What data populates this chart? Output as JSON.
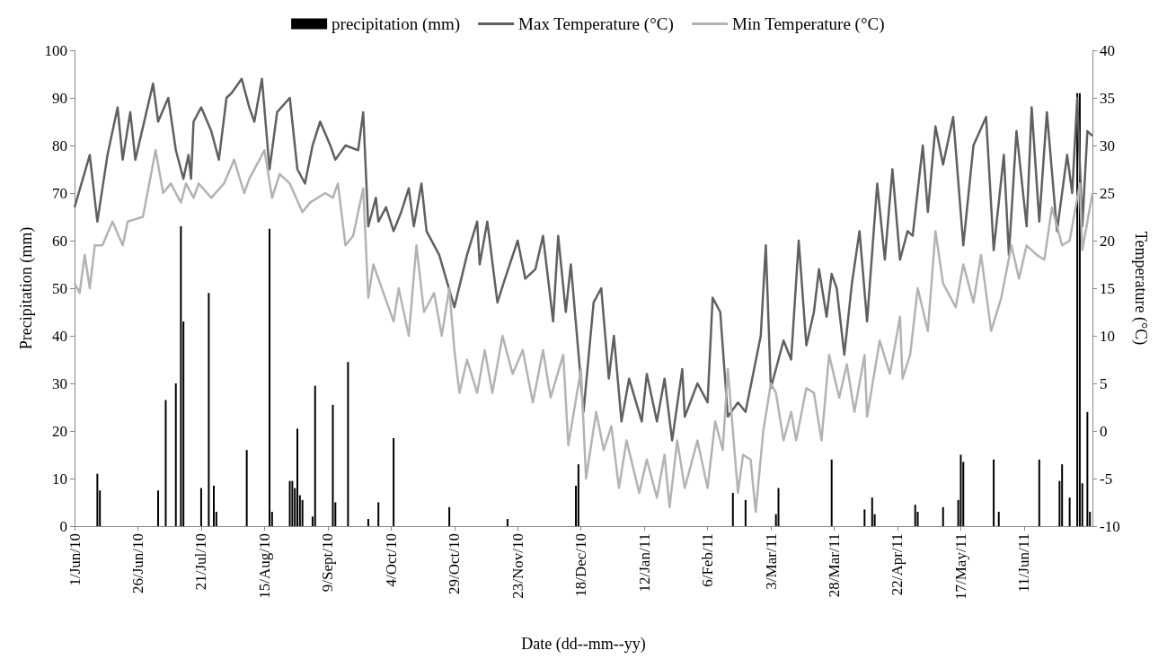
{
  "chart_data": {
    "type": "line",
    "xlabel": "Date (dd--mm--yy)",
    "ylabel": "Precipitation (mm)",
    "y2label": "Temperature (°C)",
    "xlim": [
      "2010-06-01",
      "2011-07-08"
    ],
    "xticks": [
      {
        "value": "2010-06-01",
        "label": "1/Jun/10"
      },
      {
        "value": "2010-06-26",
        "label": "26/Jun/10"
      },
      {
        "value": "2010-07-21",
        "label": "21/Jul/10"
      },
      {
        "value": "2010-08-15",
        "label": "15/Aug/10"
      },
      {
        "value": "2010-09-09",
        "label": "9/Sept/10"
      },
      {
        "value": "2010-10-04",
        "label": "4/Oct/10"
      },
      {
        "value": "2010-10-29",
        "label": "29/Oct/10"
      },
      {
        "value": "2010-11-23",
        "label": "23/Nov/10"
      },
      {
        "value": "2010-12-18",
        "label": "18/Dec/10"
      },
      {
        "value": "2011-01-12",
        "label": "12/Jan/11"
      },
      {
        "value": "2011-02-06",
        "label": "6/Feb/11"
      },
      {
        "value": "2011-03-03",
        "label": "3/Mar/11"
      },
      {
        "value": "2011-03-28",
        "label": "28/Mar/11"
      },
      {
        "value": "2011-04-22",
        "label": "22/Apr/11"
      },
      {
        "value": "2011-05-17",
        "label": "17/May/11"
      },
      {
        "value": "2011-06-11",
        "label": "11/Jun/11"
      }
    ],
    "ylim": [
      0,
      100
    ],
    "yticks": [
      0,
      10,
      20,
      30,
      40,
      50,
      60,
      70,
      80,
      90,
      100
    ],
    "y2lim": [
      -10,
      40
    ],
    "y2ticks": [
      -10,
      -5,
      0,
      5,
      10,
      15,
      20,
      25,
      30,
      35,
      40
    ],
    "grid": false,
    "legend": "top",
    "series": [
      {
        "name": "precipitation (mm)",
        "type": "bar",
        "color": "#000000",
        "x": [
          "2010-06-10",
          "2010-06-11",
          "2010-07-04",
          "2010-07-07",
          "2010-07-11",
          "2010-07-13",
          "2010-07-14",
          "2010-07-21",
          "2010-07-24",
          "2010-07-26",
          "2010-07-27",
          "2010-08-08",
          "2010-08-17",
          "2010-08-18",
          "2010-08-25",
          "2010-08-26",
          "2010-08-27",
          "2010-08-28",
          "2010-08-29",
          "2010-08-30",
          "2010-09-03",
          "2010-09-04",
          "2010-09-11",
          "2010-09-12",
          "2010-09-17",
          "2010-09-25",
          "2010-09-29",
          "2010-10-05",
          "2010-10-27",
          "2010-11-19",
          "2010-12-16",
          "2010-12-17",
          "2011-02-16",
          "2011-02-21",
          "2011-03-05",
          "2011-03-06",
          "2011-03-27",
          "2011-04-09",
          "2011-04-12",
          "2011-04-13",
          "2011-04-29",
          "2011-04-30",
          "2011-05-10",
          "2011-05-16",
          "2011-05-17",
          "2011-05-18",
          "2011-05-30",
          "2011-06-01",
          "2011-06-17",
          "2011-06-25",
          "2011-06-26",
          "2011-06-29",
          "2011-07-02",
          "2011-07-03",
          "2011-07-04",
          "2011-07-06",
          "2011-07-07"
        ],
        "values": [
          11,
          7.5,
          7.5,
          26.5,
          30,
          63,
          43,
          8,
          49,
          8.5,
          3,
          16,
          62.5,
          3,
          9.5,
          9.5,
          8,
          20.5,
          6.5,
          5.5,
          2,
          29.5,
          25.5,
          5,
          34.5,
          1.5,
          5,
          18.5,
          4,
          1.5,
          8.5,
          13,
          7,
          5.5,
          2.5,
          8,
          14,
          3.5,
          6,
          2.5,
          4.5,
          3,
          4,
          5.5,
          15,
          13.5,
          14,
          3,
          14,
          9.5,
          13,
          6,
          91,
          91,
          9,
          24,
          3
        ]
      },
      {
        "name": "Max Temperature (°C)",
        "axis": "y2",
        "color": "#606060",
        "x": [
          "2010-06-01",
          "2010-06-07",
          "2010-06-10",
          "2010-06-14",
          "2010-06-18",
          "2010-06-20",
          "2010-06-23",
          "2010-06-25",
          "2010-07-02",
          "2010-07-04",
          "2010-07-08",
          "2010-07-11",
          "2010-07-14",
          "2010-07-16",
          "2010-07-17",
          "2010-07-18",
          "2010-07-21",
          "2010-07-25",
          "2010-07-28",
          "2010-07-31",
          "2010-08-02",
          "2010-08-06",
          "2010-08-09",
          "2010-08-11",
          "2010-08-14",
          "2010-08-17",
          "2010-08-20",
          "2010-08-25",
          "2010-08-28",
          "2010-08-31",
          "2010-09-03",
          "2010-09-06",
          "2010-09-10",
          "2010-09-12",
          "2010-09-16",
          "2010-09-21",
          "2010-09-23",
          "2010-09-25",
          "2010-09-28",
          "2010-09-29",
          "2010-10-02",
          "2010-10-05",
          "2010-10-08",
          "2010-10-11",
          "2010-10-13",
          "2010-10-16",
          "2010-10-18",
          "2010-10-23",
          "2010-10-29",
          "2010-11-03",
          "2010-11-07",
          "2010-11-08",
          "2010-11-11",
          "2010-11-15",
          "2010-11-18",
          "2010-11-23",
          "2010-11-26",
          "2010-11-30",
          "2010-12-03",
          "2010-12-07",
          "2010-12-09",
          "2010-12-12",
          "2010-12-14",
          "2010-12-19",
          "2010-12-23",
          "2010-12-26",
          "2010-12-29",
          "2010-12-31",
          "2011-01-03",
          "2011-01-06",
          "2011-01-11",
          "2011-01-13",
          "2011-01-17",
          "2011-01-20",
          "2011-01-23",
          "2011-01-27",
          "2011-01-28",
          "2011-02-02",
          "2011-02-06",
          "2011-02-08",
          "2011-02-11",
          "2011-02-14",
          "2011-02-18",
          "2011-02-21",
          "2011-02-27",
          "2011-03-01",
          "2011-03-03",
          "2011-03-08",
          "2011-03-11",
          "2011-03-14",
          "2011-03-17",
          "2011-03-20",
          "2011-03-22",
          "2011-03-25",
          "2011-03-27",
          "2011-03-29",
          "2011-04-01",
          "2011-04-04",
          "2011-04-07",
          "2011-04-10",
          "2011-04-14",
          "2011-04-17",
          "2011-04-20",
          "2011-04-23",
          "2011-04-26",
          "2011-04-28",
          "2011-05-02",
          "2011-05-04",
          "2011-05-07",
          "2011-05-10",
          "2011-05-14",
          "2011-05-18",
          "2011-05-22",
          "2011-05-27",
          "2011-05-30",
          "2011-06-03",
          "2011-06-05",
          "2011-06-08",
          "2011-06-12",
          "2011-06-14",
          "2011-06-17",
          "2011-06-20",
          "2011-06-24",
          "2011-06-28",
          "2011-06-30",
          "2011-07-02",
          "2011-07-04",
          "2011-07-06",
          "2011-07-08"
        ],
        "values": [
          23.5,
          29,
          22,
          29,
          34,
          28.5,
          33.5,
          28.5,
          36.5,
          32.5,
          35,
          29.5,
          26.5,
          29,
          26.5,
          32.5,
          34,
          31.5,
          28.5,
          35,
          35.5,
          37,
          34,
          32.5,
          37,
          27.5,
          33.5,
          35,
          27.5,
          26,
          30,
          32.5,
          30,
          28.5,
          30,
          29.5,
          33.5,
          21.5,
          24.5,
          22,
          23.5,
          21,
          23,
          25.5,
          21.5,
          26,
          21,
          18.5,
          13,
          18.5,
          22,
          17.5,
          22,
          13.5,
          16,
          20,
          16,
          17,
          20.5,
          11.5,
          20.5,
          12.5,
          17.5,
          2,
          13.5,
          15,
          5.5,
          10,
          1,
          5.5,
          1,
          6,
          1,
          5.5,
          -1,
          6.5,
          1.5,
          5,
          3,
          14,
          12.5,
          1.5,
          3,
          2,
          10,
          19.5,
          4.5,
          9.5,
          7.5,
          20,
          9,
          12.5,
          17,
          12,
          16.5,
          15,
          8,
          15.5,
          21,
          11.5,
          26,
          18,
          27.5,
          18,
          21,
          20.5,
          30,
          23,
          32,
          28,
          33,
          19.5,
          30,
          33,
          19,
          29,
          18.5,
          31.5,
          21.5,
          34,
          22,
          33.5,
          21,
          29,
          25,
          35,
          21.5,
          31.5,
          31
        ]
      },
      {
        "name": "Min Temperature (°C)",
        "axis": "y2",
        "color": "#b3b3b3",
        "x": [
          "2010-06-01",
          "2010-06-03",
          "2010-06-05",
          "2010-06-07",
          "2010-06-09",
          "2010-06-12",
          "2010-06-16",
          "2010-06-20",
          "2010-06-22",
          "2010-06-28",
          "2010-07-03",
          "2010-07-06",
          "2010-07-09",
          "2010-07-13",
          "2010-07-15",
          "2010-07-18",
          "2010-07-20",
          "2010-07-25",
          "2010-07-30",
          "2010-08-03",
          "2010-08-07",
          "2010-08-09",
          "2010-08-15",
          "2010-08-18",
          "2010-08-21",
          "2010-08-25",
          "2010-08-30",
          "2010-09-02",
          "2010-09-08",
          "2010-09-11",
          "2010-09-13",
          "2010-09-16",
          "2010-09-19",
          "2010-09-23",
          "2010-09-25",
          "2010-09-27",
          "2010-10-01",
          "2010-10-05",
          "2010-10-07",
          "2010-10-11",
          "2010-10-14",
          "2010-10-17",
          "2010-10-21",
          "2010-10-24",
          "2010-10-27",
          "2010-10-29",
          "2010-10-31",
          "2010-11-03",
          "2010-11-07",
          "2010-11-10",
          "2010-11-13",
          "2010-11-17",
          "2010-11-21",
          "2010-11-25",
          "2010-11-29",
          "2010-12-03",
          "2010-12-06",
          "2010-12-11",
          "2010-12-13",
          "2010-12-18",
          "2010-12-20",
          "2010-12-24",
          "2010-12-27",
          "2010-12-30",
          "2011-01-02",
          "2011-01-05",
          "2011-01-10",
          "2011-01-13",
          "2011-01-17",
          "2011-01-20",
          "2011-01-22",
          "2011-01-25",
          "2011-01-28",
          "2011-02-02",
          "2011-02-06",
          "2011-02-09",
          "2011-02-12",
          "2011-02-14",
          "2011-02-18",
          "2011-02-20",
          "2011-02-23",
          "2011-02-25",
          "2011-02-28",
          "2011-03-03",
          "2011-03-05",
          "2011-03-08",
          "2011-03-11",
          "2011-03-13",
          "2011-03-17",
          "2011-03-20",
          "2011-03-23",
          "2011-03-26",
          "2011-03-30",
          "2011-04-02",
          "2011-04-05",
          "2011-04-09",
          "2011-04-10",
          "2011-04-15",
          "2011-04-19",
          "2011-04-23",
          "2011-04-24",
          "2011-04-27",
          "2011-04-30",
          "2011-05-04",
          "2011-05-07",
          "2011-05-10",
          "2011-05-15",
          "2011-05-18",
          "2011-05-22",
          "2011-05-25",
          "2011-05-29",
          "2011-06-02",
          "2011-06-06",
          "2011-06-09",
          "2011-06-12",
          "2011-06-16",
          "2011-06-19",
          "2011-06-22",
          "2011-06-26",
          "2011-06-29",
          "2011-07-03",
          "2011-07-04",
          "2011-07-08"
        ],
        "values": [
          15.5,
          14.5,
          18.5,
          15,
          19.5,
          19.5,
          22,
          19.5,
          22,
          22.5,
          29.5,
          25,
          26,
          24,
          26,
          24.5,
          26,
          24.5,
          26,
          28.5,
          25,
          26.5,
          29.5,
          24.5,
          27,
          26,
          23,
          24,
          25,
          24.5,
          26,
          19.5,
          20.5,
          25.5,
          14,
          17.5,
          14.5,
          11.5,
          15,
          10,
          19.5,
          12.5,
          14.5,
          10,
          15,
          8.5,
          4,
          7.5,
          4,
          8.5,
          4,
          10,
          6,
          8.5,
          3,
          8.5,
          3.5,
          8,
          -1.5,
          6.5,
          -5,
          2,
          -2,
          0.5,
          -6,
          -1,
          -6.5,
          -3,
          -7,
          -2.5,
          -8,
          -1,
          -6,
          -1,
          -6,
          1,
          -2,
          6.5,
          -6.5,
          -2.5,
          -3,
          -8.5,
          0,
          5,
          4,
          -1,
          2,
          -1,
          4.5,
          4,
          -1,
          8,
          3.5,
          7,
          2,
          8,
          1.5,
          9.5,
          6,
          12,
          5.5,
          8,
          15,
          10.5,
          21,
          15.5,
          13,
          17.5,
          13.5,
          18.5,
          10.5,
          14,
          19.5,
          16,
          19.5,
          18.5,
          18,
          23.5,
          19.5,
          20,
          26,
          19,
          25
        ]
      }
    ]
  }
}
